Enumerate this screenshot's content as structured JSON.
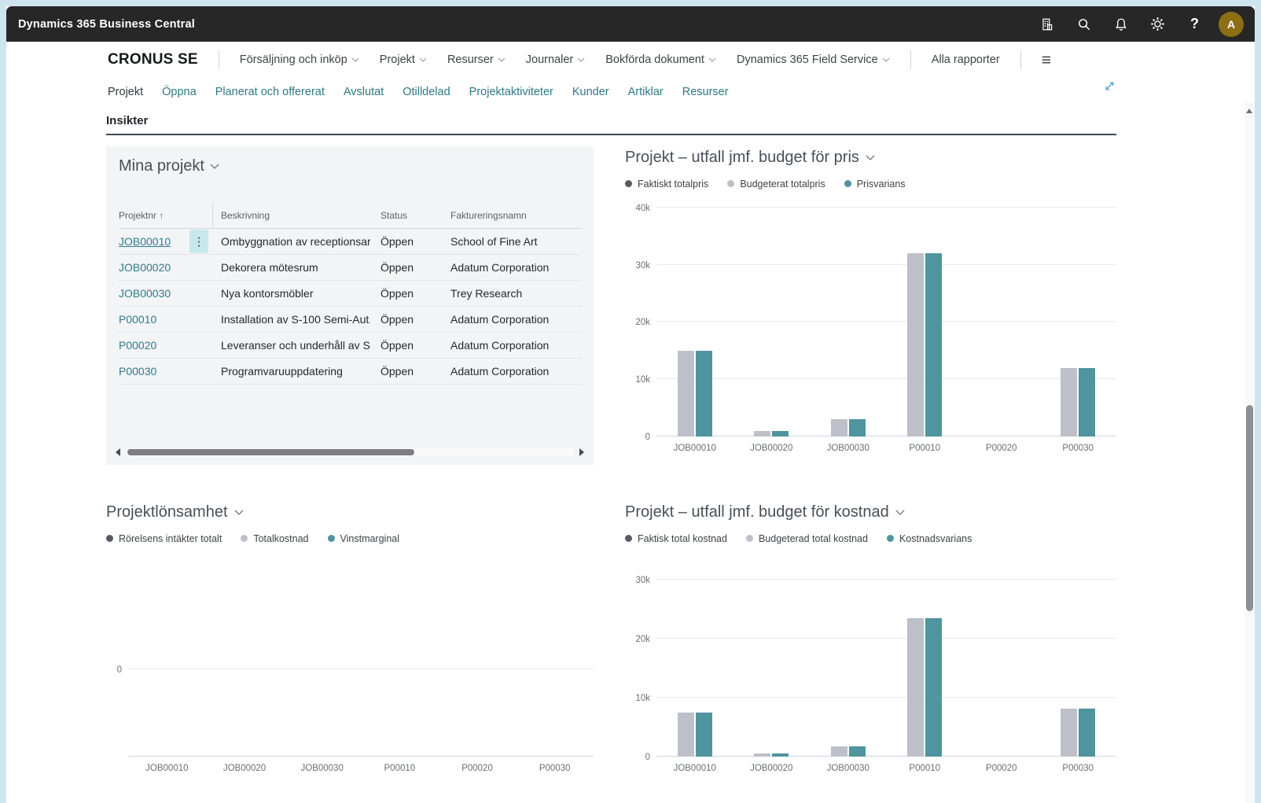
{
  "titlebar": {
    "app_title": "Dynamics 365 Business Central",
    "avatar_initial": "A"
  },
  "icons": {
    "help": "?",
    "hamburger": "≡",
    "kebab": "⋮",
    "sort_ascending": "↑"
  },
  "topnav": {
    "company": "CRONUS SE",
    "menus": [
      {
        "label": "Försäljning och inköp"
      },
      {
        "label": "Projekt"
      },
      {
        "label": "Resurser"
      },
      {
        "label": "Journaler"
      },
      {
        "label": "Bokförda dokument"
      },
      {
        "label": "Dynamics 365 Field Service"
      }
    ],
    "all_reports_label": "Alla rapporter"
  },
  "subnav": {
    "items": [
      {
        "label": "Projekt"
      },
      {
        "label": "Öppna"
      },
      {
        "label": "Planerat och offererat"
      },
      {
        "label": "Avslutat"
      },
      {
        "label": "Otilldelad"
      },
      {
        "label": "Projektaktiviteter"
      },
      {
        "label": "Kunder"
      },
      {
        "label": "Artiklar"
      },
      {
        "label": "Resurser"
      }
    ]
  },
  "insights_title": "Insikter",
  "my_projects": {
    "title": "Mina projekt",
    "columns": {
      "no": "Projektnr",
      "desc": "Beskrivning",
      "status": "Status",
      "billto": "Faktureringsnamn"
    },
    "rows": [
      {
        "no": "JOB00010",
        "desc": "Ombyggnation av receptionsar...",
        "status": "Öppen",
        "billto": "School of Fine Art"
      },
      {
        "no": "JOB00020",
        "desc": "Dekorera mötesrum",
        "status": "Öppen",
        "billto": "Adatum Corporation"
      },
      {
        "no": "JOB00030",
        "desc": "Nya kontorsmöbler",
        "status": "Öppen",
        "billto": "Trey Research"
      },
      {
        "no": "P00010",
        "desc": "Installation av S-100 Semi-Aut...",
        "status": "Öppen",
        "billto": "Adatum Corporation"
      },
      {
        "no": "P00020",
        "desc": "Leveranser och underhåll av S-...",
        "status": "Öppen",
        "billto": "Adatum Corporation"
      },
      {
        "no": "P00030",
        "desc": "Programvaruuppdatering",
        "status": "Öppen",
        "billto": "Adatum Corporation"
      }
    ]
  },
  "chart_data": [
    {
      "type": "bar",
      "title": "Projekt – utfall jmf. budget för pris",
      "categories": [
        "JOB00010",
        "JOB00020",
        "JOB00030",
        "P00010",
        "P00020",
        "P00030"
      ],
      "series": [
        {
          "name": "Faktiskt totalpris",
          "color": "#565b63",
          "values": [
            0,
            0,
            0,
            0,
            0,
            0
          ]
        },
        {
          "name": "Budgeterat totalpris",
          "color": "#bdc0c9",
          "values": [
            15000,
            1000,
            3000,
            32000,
            0,
            12000
          ]
        },
        {
          "name": "Prisvarians",
          "color": "#4f949e",
          "values": [
            15000,
            1000,
            3000,
            32000,
            0,
            12000
          ]
        }
      ],
      "ylim": [
        0,
        40000
      ],
      "yticks": [
        {
          "value": 0,
          "label": "0"
        },
        {
          "value": 10000,
          "label": "10k"
        },
        {
          "value": 20000,
          "label": "20k"
        },
        {
          "value": 30000,
          "label": "30k"
        },
        {
          "value": 40000,
          "label": "40k"
        }
      ],
      "grid": true,
      "legend_position": "top"
    },
    {
      "type": "bar",
      "title": "Projektlönsamhet",
      "categories": [
        "JOB00010",
        "JOB00020",
        "JOB00030",
        "P00010",
        "P00020",
        "P00030"
      ],
      "series": [
        {
          "name": "Rörelsens intäkter totalt",
          "color": "#565b63",
          "values": [
            0,
            0,
            0,
            0,
            0,
            0
          ]
        },
        {
          "name": "Totalkostnad",
          "color": "#bdc0c9",
          "values": [
            0,
            0,
            0,
            0,
            0,
            0
          ]
        },
        {
          "name": "Vinstmarginal",
          "color": "#4f949e",
          "values": [
            0,
            0,
            0,
            0,
            0,
            0
          ]
        }
      ],
      "ylim": [
        -15000,
        5000
      ],
      "yticks": [
        {
          "value": 0,
          "label": "0"
        }
      ],
      "grid": true,
      "legend_position": "top"
    },
    {
      "type": "bar",
      "title": "Projekt – utfall jmf. budget för kostnad",
      "categories": [
        "JOB00010",
        "JOB00020",
        "JOB00030",
        "P00010",
        "P00020",
        "P00030"
      ],
      "series": [
        {
          "name": "Faktisk total kostnad",
          "color": "#565b63",
          "values": [
            0,
            0,
            0,
            0,
            0,
            0
          ]
        },
        {
          "name": "Budgeterad total kostnad",
          "color": "#bdc0c9",
          "values": [
            7500,
            500,
            1700,
            23500,
            0,
            8200
          ]
        },
        {
          "name": "Kostnadsvarians",
          "color": "#4f949e",
          "values": [
            7500,
            500,
            1700,
            23500,
            0,
            8200
          ]
        }
      ],
      "ylim": [
        0,
        30000
      ],
      "yticks": [
        {
          "value": 0,
          "label": "0"
        },
        {
          "value": 10000,
          "label": "10k"
        },
        {
          "value": 20000,
          "label": "20k"
        },
        {
          "value": 30000,
          "label": "30k"
        }
      ],
      "grid": true,
      "legend_position": "top"
    }
  ],
  "colors": {
    "accent_teal": "#4f949e",
    "link_teal": "#2e7c89",
    "series_gray": "#bdc0c9",
    "series_dark": "#565b63",
    "appbar_bg": "#272727",
    "avatar_bg": "#8c6e14",
    "card_bg": "#f3f4f6",
    "kebab_bg": "#c7e8eb"
  }
}
